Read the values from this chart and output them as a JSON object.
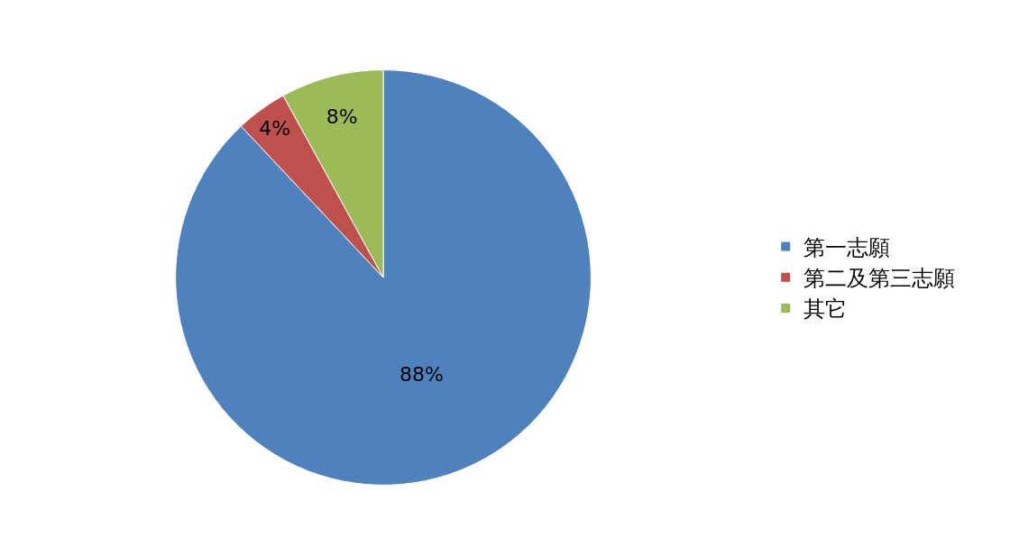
{
  "chart_data": {
    "type": "pie",
    "categories": [
      "第一志願",
      "第二及第三志願",
      "其它"
    ],
    "values": [
      88,
      4,
      8
    ],
    "colors": [
      "#4f81bd",
      "#c0504d",
      "#9bbb59"
    ],
    "value_labels": [
      "88%",
      "4%",
      "8%"
    ],
    "legend": "right"
  }
}
